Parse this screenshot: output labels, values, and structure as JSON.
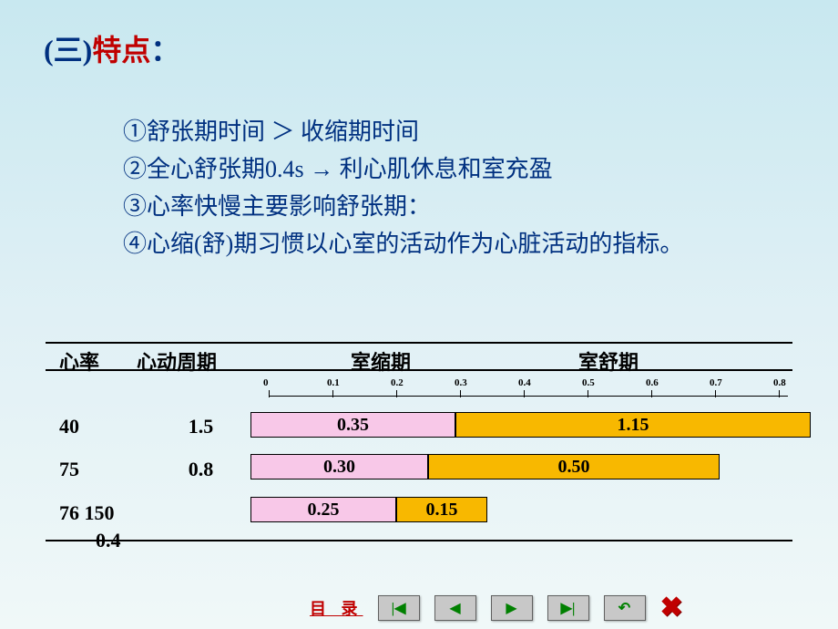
{
  "title": {
    "open_paren": "(三)",
    "highlight": "特点",
    "close": "："
  },
  "bullets": {
    "b1": "①舒张期时间 ＞ 收缩期时间",
    "b2": "②全心舒张期0.4s → 利心肌休息和室充盈",
    "b3": "③心率快慢主要影响舒张期：",
    "b4": "④心缩(舒)期习惯以心室的活动作为心脏活动的指标。"
  },
  "table": {
    "headers": {
      "h1": "心率",
      "h2": "心动周期",
      "h3": "室缩期",
      "h4": "室舒期"
    },
    "ruler_ticks": [
      "0",
      "0.1",
      "0.2",
      "0.3",
      "0.4",
      "0.5",
      "0.6",
      "0.7",
      "0.8"
    ],
    "rows": [
      {
        "rate": "40",
        "cycle": "1.5",
        "systole": "0.35",
        "diastole": "1.15",
        "s_width": 225,
        "d_width": 390
      },
      {
        "rate": "75",
        "cycle": "0.8",
        "systole": "0.30",
        "diastole": "0.50",
        "s_width": 195,
        "d_width": 320
      },
      {
        "rate": "76  150",
        "cycle": "",
        "systole": "0.25",
        "diastole": "0.15",
        "s_width": 160,
        "d_width": 100
      }
    ],
    "extra_note": "0.4",
    "colors": {
      "systole_bg": "#f8c8e8",
      "diastole_bg": "#f8b800"
    }
  },
  "nav": {
    "toc_label": "目 录"
  }
}
